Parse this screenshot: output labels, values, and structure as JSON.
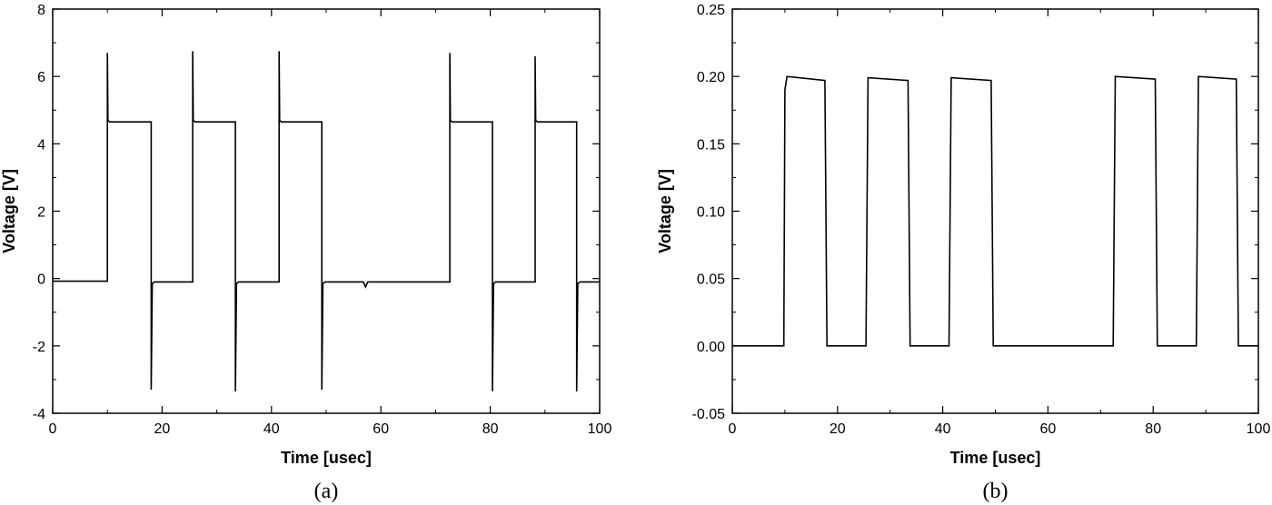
{
  "chart_data": [
    {
      "type": "line",
      "caption": "(a)",
      "xlabel": "Time [usec]",
      "ylabel": "Voltage [V]",
      "xlim": [
        0,
        100
      ],
      "ylim": [
        -4,
        8
      ],
      "xticks": [
        0,
        20,
        40,
        60,
        80,
        100
      ],
      "xtick_labels": [
        "0",
        "20",
        "40",
        "60",
        "80",
        "100"
      ],
      "yticks": [
        -4,
        -2,
        0,
        2,
        4,
        6,
        8
      ],
      "ytick_labels": [
        "-4",
        "-2",
        "0",
        "2",
        "4",
        "6",
        "8"
      ],
      "grid": false,
      "series": [
        {
          "x": [
            0,
            10,
            10,
            10.1,
            10.4,
            18,
            18,
            18.2,
            18.6,
            25.6,
            25.6,
            25.7,
            26.0,
            33.4,
            33.4,
            33.6,
            34.0,
            41.4,
            41.4,
            41.5,
            41.8,
            49.2,
            49.2,
            49.4,
            49.8,
            56.8,
            57.2,
            57.6,
            72.6,
            72.6,
            72.7,
            73.0,
            80.4,
            80.4,
            80.6,
            81.0,
            88.2,
            88.2,
            88.3,
            88.6,
            95.8,
            95.8,
            96.0,
            96.4,
            100
          ],
          "y": [
            -0.08,
            -0.08,
            6.7,
            4.7,
            4.65,
            4.65,
            -3.3,
            -0.15,
            -0.1,
            -0.1,
            6.75,
            4.7,
            4.65,
            4.65,
            -3.35,
            -0.15,
            -0.1,
            -0.1,
            6.75,
            4.7,
            4.65,
            4.65,
            -3.3,
            -0.15,
            -0.1,
            -0.1,
            -0.25,
            -0.1,
            -0.1,
            6.7,
            4.7,
            4.65,
            4.65,
            -3.35,
            -0.15,
            -0.1,
            -0.1,
            6.6,
            4.7,
            4.65,
            4.65,
            -3.35,
            -0.15,
            -0.1,
            -0.1
          ]
        }
      ]
    },
    {
      "type": "line",
      "caption": "(b)",
      "xlabel": "Time [usec]",
      "ylabel": "Voltage [V]",
      "xlim": [
        0,
        100
      ],
      "ylim": [
        -0.05,
        0.25
      ],
      "xticks": [
        0,
        20,
        40,
        60,
        80,
        100
      ],
      "xtick_labels": [
        "0",
        "20",
        "40",
        "60",
        "80",
        "100"
      ],
      "yticks": [
        -0.05,
        0,
        0.05,
        0.1,
        0.15,
        0.2,
        0.25
      ],
      "ytick_labels": [
        "-0.05",
        "0.00",
        "0.05",
        "0.10",
        "0.15",
        "0.20",
        "0.25"
      ],
      "grid": false,
      "series": [
        {
          "x": [
            0,
            9.8,
            10.0,
            10.4,
            17.6,
            18.0,
            25.4,
            25.8,
            33.4,
            33.8,
            41.2,
            41.6,
            49.2,
            49.6,
            72.4,
            72.8,
            80.4,
            80.8,
            88.2,
            88.6,
            95.8,
            96.2,
            100
          ],
          "y": [
            0.0,
            0.0,
            0.19,
            0.2,
            0.197,
            0.0,
            0.0,
            0.199,
            0.197,
            0.0,
            0.0,
            0.199,
            0.197,
            0.0,
            0.0,
            0.2,
            0.198,
            0.0,
            0.0,
            0.2,
            0.198,
            0.0,
            0.0
          ]
        }
      ]
    }
  ]
}
